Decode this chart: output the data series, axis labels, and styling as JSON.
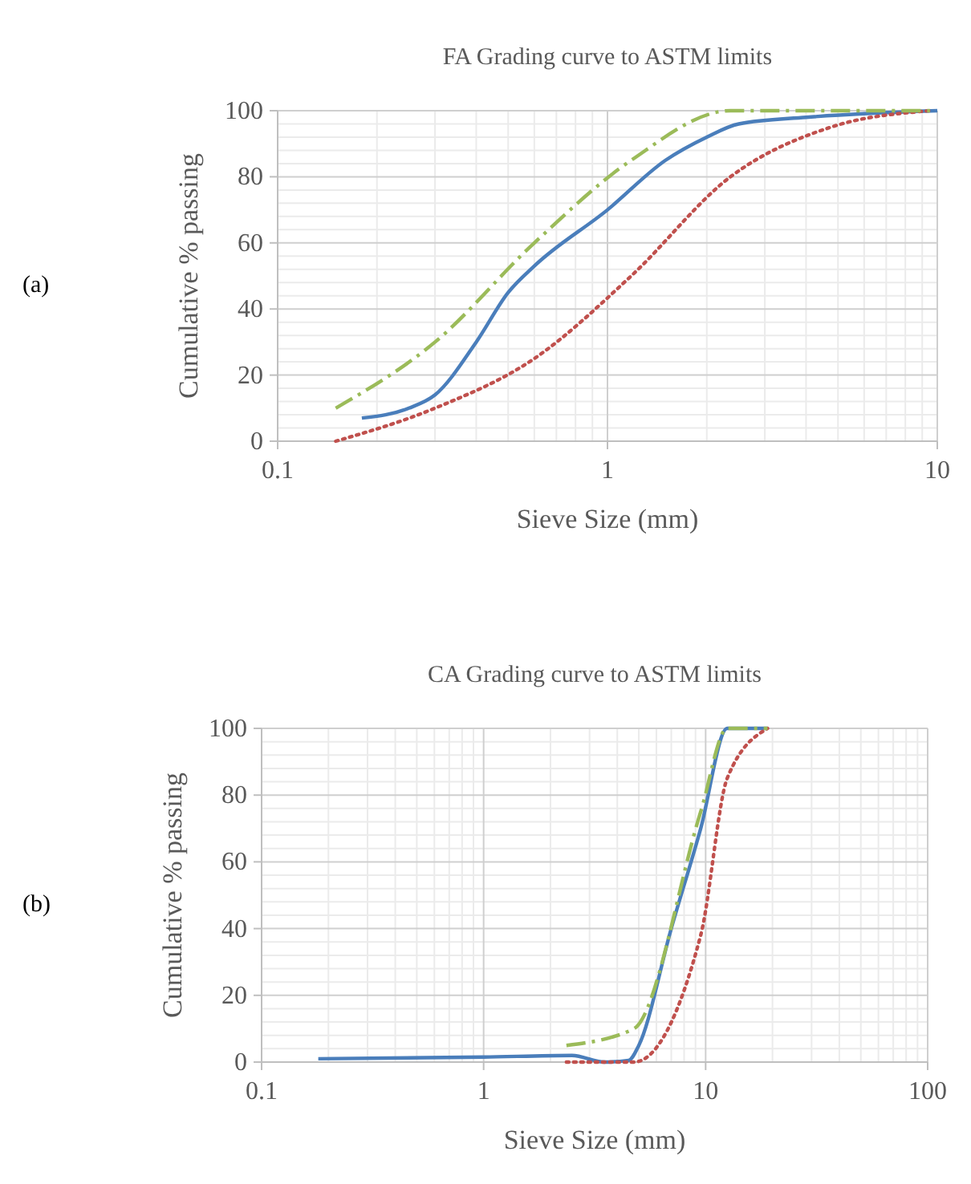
{
  "chart_data": [
    {
      "type": "line",
      "title": "FA Grading curve to ASTM limits",
      "xlabel": "Sieve Size (mm)",
      "ylabel": "Cumulative  %  passing",
      "annotations": [
        "(a)"
      ],
      "log": "x",
      "grid": true,
      "xlim": [
        0.1,
        10
      ],
      "xticks": [
        0.1,
        1,
        10
      ],
      "ylim": [
        0,
        100
      ],
      "yticks": [
        0,
        20,
        40,
        60,
        80,
        100
      ],
      "series": [
        {
          "color": "#4a7ebb",
          "line_style": "solid",
          "x": [
            0.18,
            0.25,
            0.3,
            0.4,
            0.5,
            0.6,
            1,
            1.5,
            2,
            2.5,
            4,
            10
          ],
          "values": [
            7,
            10,
            14,
            30,
            45,
            53,
            70,
            85,
            92,
            96,
            98,
            100
          ]
        },
        {
          "color": "#c0504d",
          "line_style": "dotted",
          "x": [
            0.15,
            0.3,
            0.6,
            1.18,
            2.36,
            4.75,
            9.5
          ],
          "values": [
            0,
            10,
            25,
            50,
            80,
            95,
            100
          ]
        },
        {
          "color": "#9bbb59",
          "line_style": "dashed",
          "x": [
            0.15,
            0.3,
            0.6,
            1.18,
            2.36,
            4.75,
            9.5
          ],
          "values": [
            10,
            30,
            60,
            85,
            100,
            100,
            100
          ]
        }
      ]
    },
    {
      "type": "line",
      "title": "CA Grading curve to ASTM limits",
      "xlabel": "Sieve Size (mm)",
      "ylabel": "Cumulative % passing",
      "annotations": [
        "(b)"
      ],
      "log": "x",
      "grid": true,
      "xlim": [
        0.1,
        100
      ],
      "xticks": [
        0.1,
        1,
        10,
        100
      ],
      "ylim": [
        0,
        100
      ],
      "yticks": [
        0,
        20,
        40,
        60,
        80,
        100
      ],
      "series": [
        {
          "color": "#4a7ebb",
          "line_style": "solid",
          "x": [
            0.18,
            1,
            2.5,
            3.5,
            4.5,
            5,
            7,
            9.5,
            12.5,
            19
          ],
          "values": [
            1,
            1.5,
            2,
            0,
            0.5,
            5,
            40,
            70,
            100,
            100
          ]
        },
        {
          "color": "#c0504d",
          "line_style": "dotted",
          "x": [
            2.36,
            4.75,
            9.5,
            12.5,
            19
          ],
          "values": [
            0,
            0,
            38,
            85,
            100
          ]
        },
        {
          "color": "#9bbb59",
          "line_style": "dashed",
          "x": [
            2.36,
            4.75,
            9.5,
            12.5,
            19
          ],
          "values": [
            5,
            10,
            75,
            100,
            100
          ]
        }
      ]
    }
  ]
}
